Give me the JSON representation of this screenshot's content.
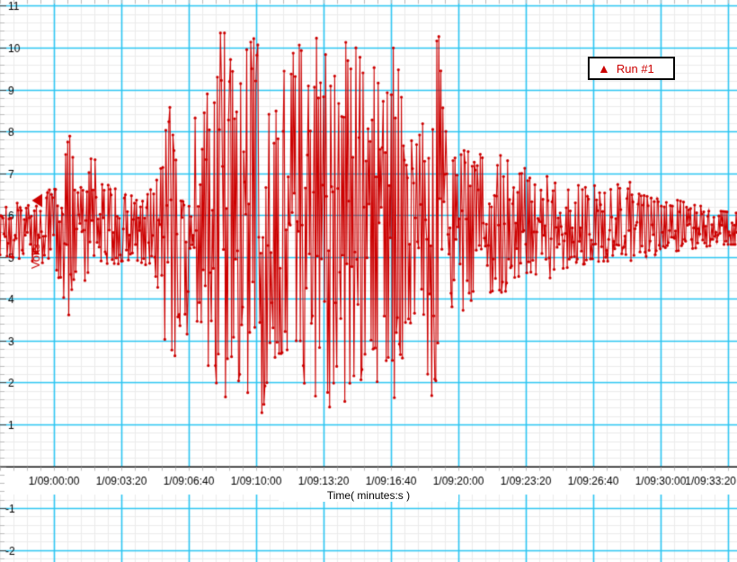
{
  "chart_data": {
    "type": "line",
    "title": "",
    "xlabel": "Time( minutes:s )",
    "ylabel": "Volts",
    "legend": {
      "icon": "up-triangle-icon",
      "icon_glyph": "▲",
      "label": "Run #1"
    },
    "theme": {
      "trace_color": "#CC0000",
      "grid_major_color": "#2CC5F2",
      "grid_minor_color": "#EBEBEB",
      "axis_color": "#000000",
      "label_color": "#000000",
      "background": "#FFFFFF"
    },
    "x_axis": {
      "t_min": -160,
      "t_max": 2027,
      "minor_step": 40,
      "major_step": 200,
      "ticks": [
        {
          "t": 0,
          "label": "1/09:00:00"
        },
        {
          "t": 200,
          "label": "1/09:03:20"
        },
        {
          "t": 400,
          "label": "1/09:06:40"
        },
        {
          "t": 600,
          "label": "1/09:10:00"
        },
        {
          "t": 800,
          "label": "1/09:13:20"
        },
        {
          "t": 1000,
          "label": "1/09:16:40"
        },
        {
          "t": 1200,
          "label": "1/09:20:00"
        },
        {
          "t": 1400,
          "label": "1/09:23:20"
        },
        {
          "t": 1600,
          "label": "1/09:26:40"
        },
        {
          "t": 1800,
          "label": "1/09:30:00"
        },
        {
          "t": 2000,
          "label": "1/09:33:20"
        }
      ]
    },
    "y_axis": {
      "v_min": -2.4,
      "v_max": 11.2,
      "minor_step": 0.2,
      "major_step": 1,
      "ticks": [
        {
          "v": 11,
          "label": "11"
        },
        {
          "v": 10,
          "label": "10"
        },
        {
          "v": 9,
          "label": "9"
        },
        {
          "v": 8,
          "label": "8"
        },
        {
          "v": 7,
          "label": "7"
        },
        {
          "v": 6,
          "label": "6"
        },
        {
          "v": 5,
          "label": "5"
        },
        {
          "v": 4,
          "label": "4"
        },
        {
          "v": 3,
          "label": "3"
        },
        {
          "v": 2,
          "label": "2"
        },
        {
          "v": 1,
          "label": "1"
        },
        {
          "v": -1,
          "label": "-1"
        },
        {
          "v": -2,
          "label": "-2"
        }
      ]
    },
    "series_name": "Run #1",
    "baseline": 5.62,
    "clip": [
      1.28,
      10.35
    ],
    "sample_dt": 3.0,
    "left_marker_value": 6.35,
    "envelope": [
      [
        -160,
        5.05,
        6.25
      ],
      [
        -93,
        4.95,
        6.3
      ],
      [
        -27,
        4.85,
        6.45
      ],
      [
        5,
        4.4,
        6.8
      ],
      [
        27,
        3.9,
        7.6
      ],
      [
        45,
        3.6,
        8.0
      ],
      [
        61,
        4.3,
        7.1
      ],
      [
        93,
        4.35,
        7.0
      ],
      [
        120,
        3.9,
        7.55
      ],
      [
        139,
        4.3,
        7.0
      ],
      [
        165,
        4.65,
        6.75
      ],
      [
        200,
        4.9,
        6.5
      ],
      [
        240,
        4.95,
        6.45
      ],
      [
        275,
        4.8,
        6.6
      ],
      [
        299,
        4.3,
        7.1
      ],
      [
        320,
        3.6,
        7.8
      ],
      [
        339,
        2.4,
        9.0
      ],
      [
        352,
        1.8,
        9.25
      ],
      [
        368,
        2.7,
        8.3
      ],
      [
        392,
        2.9,
        8.2
      ],
      [
        413,
        2.8,
        8.5
      ],
      [
        432,
        3.1,
        8.2
      ],
      [
        448,
        2.5,
        8.65
      ],
      [
        461,
        2.1,
        9.3
      ],
      [
        475,
        1.7,
        9.45
      ],
      [
        488,
        1.28,
        10.35
      ],
      [
        512,
        1.28,
        10.35
      ],
      [
        528,
        2.2,
        9.6
      ],
      [
        541,
        1.28,
        10.35
      ],
      [
        565,
        1.28,
        10.35
      ],
      [
        587,
        1.6,
        10.1
      ],
      [
        600,
        1.28,
        10.35
      ],
      [
        627,
        1.28,
        10.35
      ],
      [
        640,
        2.3,
        9.5
      ],
      [
        656,
        2.6,
        9.2
      ],
      [
        672,
        1.5,
        10.2
      ],
      [
        688,
        1.28,
        10.35
      ],
      [
        720,
        1.28,
        10.35
      ],
      [
        747,
        1.5,
        10.35
      ],
      [
        768,
        1.28,
        10.35
      ],
      [
        789,
        1.28,
        10.35
      ],
      [
        805,
        2.0,
        9.8
      ],
      [
        821,
        1.28,
        10.35
      ],
      [
        848,
        1.28,
        10.35
      ],
      [
        875,
        1.4,
        10.35
      ],
      [
        893,
        1.28,
        10.35
      ],
      [
        912,
        2.0,
        9.9
      ],
      [
        928,
        2.4,
        9.4
      ],
      [
        947,
        2.2,
        9.6
      ],
      [
        965,
        1.8,
        10.0
      ],
      [
        981,
        2.3,
        9.5
      ],
      [
        1000,
        1.7,
        10.1
      ],
      [
        1013,
        1.5,
        10.35
      ],
      [
        1027,
        1.55,
        10.35
      ],
      [
        1040,
        3.0,
        8.2
      ],
      [
        1056,
        3.3,
        7.7
      ],
      [
        1075,
        3.0,
        8.0
      ],
      [
        1093,
        2.7,
        8.6
      ],
      [
        1109,
        2.2,
        9.2
      ],
      [
        1125,
        1.3,
        10.35
      ],
      [
        1141,
        1.3,
        10.35
      ],
      [
        1157,
        2.6,
        9.0
      ],
      [
        1173,
        3.5,
        7.6
      ],
      [
        1195,
        3.7,
        7.3
      ],
      [
        1213,
        3.5,
        7.5
      ],
      [
        1232,
        3.3,
        7.7
      ],
      [
        1253,
        3.8,
        7.4
      ],
      [
        1275,
        3.9,
        7.5
      ],
      [
        1296,
        4.0,
        7.3
      ],
      [
        1320,
        4.1,
        7.4
      ],
      [
        1339,
        4.0,
        7.5
      ],
      [
        1360,
        4.3,
        7.2
      ],
      [
        1387,
        4.35,
        7.1
      ],
      [
        1413,
        4.4,
        7.15
      ],
      [
        1440,
        4.5,
        7.0
      ],
      [
        1467,
        4.45,
        7.05
      ],
      [
        1493,
        4.7,
        6.9
      ],
      [
        1525,
        4.75,
        6.95
      ],
      [
        1552,
        4.8,
        6.85
      ],
      [
        1587,
        4.85,
        6.8
      ],
      [
        1621,
        4.9,
        6.75
      ],
      [
        1653,
        4.9,
        6.7
      ],
      [
        1685,
        4.95,
        6.75
      ],
      [
        1720,
        4.9,
        6.8
      ],
      [
        1747,
        5.0,
        6.6
      ],
      [
        1781,
        5.05,
        6.5
      ],
      [
        1813,
        5.1,
        6.45
      ],
      [
        1853,
        5.15,
        6.35
      ],
      [
        1893,
        5.2,
        6.25
      ],
      [
        1933,
        5.25,
        6.2
      ],
      [
        1973,
        5.3,
        6.1
      ],
      [
        2027,
        5.3,
        6.05
      ]
    ]
  }
}
